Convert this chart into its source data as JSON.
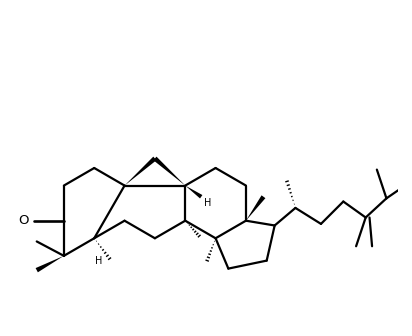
{
  "bg_color": "#ffffff",
  "lw": 1.6,
  "figsize": [
    4.12,
    3.36
  ],
  "dpi": 100,
  "xlim": [
    -0.5,
    11.5
  ],
  "ylim": [
    -0.3,
    9.8
  ]
}
